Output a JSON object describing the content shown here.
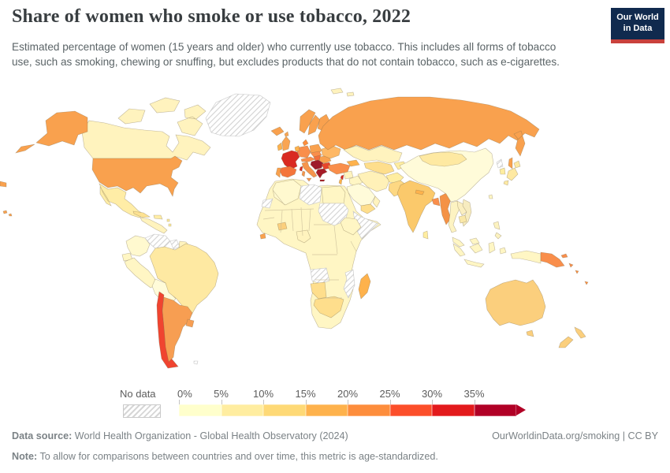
{
  "header": {
    "title": "Share of women who smoke or use tobacco, 2022",
    "subtitle": "Estimated percentage of women (15 years and older) who currently use tobacco. This includes all forms of tobacco use, such as smoking, chewing or snuffing, but excludes products that do not contain tobacco, such as e-cigarettes.",
    "logo": {
      "line1": "Our World",
      "line2": "in Data",
      "bg": "#102a4e",
      "stripe": "#c9413c"
    }
  },
  "legend": {
    "no_data_label": "No data"
  },
  "footer": {
    "source_label": "Data source:",
    "source_text": " World Health Organization - Global Health Observatory (2024)",
    "link": "OurWorldinData.org/smoking | CC BY",
    "note_label": "Note:",
    "note_text": " To allow for comparisons between countries and over time, this metric is age-standardized."
  },
  "chart_data": {
    "type": "choropleth",
    "title": "Share of women who smoke or use tobacco, 2022",
    "year": 2022,
    "unit": "% of women aged 15+ using tobacco",
    "projection": "world map",
    "no_data": {
      "label": "No data",
      "pattern": "diagonal-hatch"
    },
    "legend_bins": [
      {
        "label": "0%",
        "range": "0-5%",
        "color": "#FFFFCC"
      },
      {
        "label": "5%",
        "range": "5-10%",
        "color": "#FFEDA0"
      },
      {
        "label": "10%",
        "range": "10-15%",
        "color": "#FED976"
      },
      {
        "label": "15%",
        "range": "15-20%",
        "color": "#FEB24C"
      },
      {
        "label": "20%",
        "range": "20-25%",
        "color": "#FD8D3C"
      },
      {
        "label": "25%",
        "range": "25-30%",
        "color": "#FC4E2A"
      },
      {
        "label": "30%",
        "range": "30-35%",
        "color": "#E31A1C"
      },
      {
        "label": "35%",
        "range": "35%+",
        "color": "#B10026"
      }
    ],
    "regions": [
      {
        "id": "greenland",
        "label": "Greenland",
        "color": "no-data",
        "value_range": "No data"
      },
      {
        "id": "canada",
        "label": "Canada",
        "color": "#FFF3BE",
        "value_range": "5-10%"
      },
      {
        "id": "usa",
        "label": "United States",
        "color": "#F9A14E",
        "value_range": "15-20%"
      },
      {
        "id": "mexico",
        "label": "Mexico",
        "color": "#FFEDA6",
        "value_range": "5-10%"
      },
      {
        "id": "central_america",
        "label": "Central America",
        "color": "#FFF3BE",
        "value_range": "5-10%"
      },
      {
        "id": "cuba",
        "label": "Cuba",
        "color": "#FDE292",
        "value_range": "10-15%"
      },
      {
        "id": "hispaniola",
        "label": "Haiti / Dominican Republic",
        "color": "#FFEDA6",
        "value_range": "5-10%"
      },
      {
        "id": "caribbean",
        "label": "Lesser Antilles",
        "color": "#FFEDA0",
        "value_range": "5-10%"
      },
      {
        "id": "colombia",
        "label": "Colombia",
        "color": "#FFF9CF",
        "value_range": "0-5%"
      },
      {
        "id": "venezuela",
        "label": "Venezuela",
        "color": "no-data",
        "value_range": "No data"
      },
      {
        "id": "guyana",
        "label": "Guyana",
        "color": "no-data",
        "value_range": "No data"
      },
      {
        "id": "guianas",
        "label": "Suriname / French Guiana",
        "color": "#FFF3BE",
        "value_range": "5-10%"
      },
      {
        "id": "ecuador",
        "label": "Ecuador",
        "color": "#FFF6C4",
        "value_range": "0-5%"
      },
      {
        "id": "peru",
        "label": "Peru",
        "color": "#FFF6C4",
        "value_range": "0-5%"
      },
      {
        "id": "bolivia",
        "label": "Bolivia",
        "color": "#FFFBD9",
        "value_range": "0-5%"
      },
      {
        "id": "brazil",
        "label": "Brazil",
        "color": "#FEE9A2",
        "value_range": "5-10%"
      },
      {
        "id": "paraguay",
        "label": "Paraguay",
        "color": "#FFF3BE",
        "value_range": "5-10%"
      },
      {
        "id": "chile",
        "label": "Chile",
        "color": "#F04430",
        "value_range": "25-30%"
      },
      {
        "id": "argentina",
        "label": "Argentina",
        "color": "#F79E52",
        "value_range": "15-20%"
      },
      {
        "id": "uruguay",
        "label": "Uruguay",
        "color": "#F79E52",
        "value_range": "15-20%"
      },
      {
        "id": "falkland",
        "label": "Falkland Islands",
        "color": "no-data",
        "value_range": "No data"
      },
      {
        "id": "iceland",
        "label": "Iceland",
        "color": "#F9A14E",
        "value_range": "15-20%"
      },
      {
        "id": "uk",
        "label": "United Kingdom",
        "color": "#F9A552",
        "value_range": "15-20%"
      },
      {
        "id": "ireland",
        "label": "Ireland",
        "color": "#FEB24C",
        "value_range": "15-20%"
      },
      {
        "id": "norway",
        "label": "Norway",
        "color": "#F9A14E",
        "value_range": "20-25%"
      },
      {
        "id": "sweden",
        "label": "Sweden",
        "color": "#F9A14E",
        "value_range": "20-25%"
      },
      {
        "id": "finland",
        "label": "Finland",
        "color": "#F9A14E",
        "value_range": "15-20%"
      },
      {
        "id": "svalbard",
        "label": "Svalbard",
        "color": "#FFF3BE",
        "value_range": "5-10%"
      },
      {
        "id": "denmark",
        "label": "Denmark",
        "color": "#FD8D3C",
        "value_range": "20-25%"
      },
      {
        "id": "baltics",
        "label": "Baltic states",
        "color": "#F9A14E",
        "value_range": "15-20%"
      },
      {
        "id": "belarus",
        "label": "Belarus",
        "color": "#F9A14E",
        "value_range": "15-20%"
      },
      {
        "id": "poland",
        "label": "Poland",
        "color": "#F9A14E",
        "value_range": "15-20%"
      },
      {
        "id": "germany",
        "label": "Germany",
        "color": "#F98E4B",
        "value_range": "20-25%"
      },
      {
        "id": "benelux",
        "label": "Netherlands / Belgium",
        "color": "#FEB24C",
        "value_range": "15-20%"
      },
      {
        "id": "france",
        "label": "France",
        "color": "#D92A22",
        "value_range": "30-35%"
      },
      {
        "id": "spain",
        "label": "Spain",
        "color": "#F4753C",
        "value_range": "25-30%"
      },
      {
        "id": "portugal",
        "label": "Portugal",
        "color": "#F9A14E",
        "value_range": "15-20%"
      },
      {
        "id": "italy",
        "label": "Italy",
        "color": "#F6954C",
        "value_range": "20-25%"
      },
      {
        "id": "alps",
        "label": "Switzerland / Austria",
        "color": "#F98E4B",
        "value_range": "20-25%"
      },
      {
        "id": "czech_slovakia",
        "label": "Czechia / Slovakia",
        "color": "#F98E4B",
        "value_range": "20-25%"
      },
      {
        "id": "hungary",
        "label": "Hungary",
        "color": "#F4703C",
        "value_range": "25-30%"
      },
      {
        "id": "romania",
        "label": "Romania",
        "color": "#F9A14E",
        "value_range": "15-20%"
      },
      {
        "id": "ukraine",
        "label": "Ukraine",
        "color": "#FEB865",
        "value_range": "15-20%"
      },
      {
        "id": "balkans",
        "label": "Serbia / Bosnia / Croatia",
        "color": "#9E1B2B",
        "value_range": "35%+"
      },
      {
        "id": "bulgaria",
        "label": "Bulgaria",
        "color": "#E8452B",
        "value_range": "30-35%"
      },
      {
        "id": "greece",
        "label": "Greece",
        "color": "#A61C28",
        "value_range": "35%+"
      },
      {
        "id": "russia",
        "label": "Russia",
        "color": "#F9A14E",
        "value_range": "20-25%"
      },
      {
        "id": "kazakhstan",
        "label": "Kazakhstan",
        "color": "#FFF3BE",
        "value_range": "5-10%"
      },
      {
        "id": "uzbek_turkmen",
        "label": "Uzbekistan / Turkmenistan",
        "color": "#FEDE8C",
        "value_range": "10-15%"
      },
      {
        "id": "kyrgyz_tajik",
        "label": "Kyrgyzstan / Tajikistan",
        "color": "#FFEDA0",
        "value_range": "5-10%"
      },
      {
        "id": "caucasus",
        "label": "Caucasus",
        "color": "#FEB24C",
        "value_range": "15-20%"
      },
      {
        "id": "turkey",
        "label": "Turkey",
        "color": "#F98E4B",
        "value_range": "20-25%"
      },
      {
        "id": "syria",
        "label": "Syria",
        "color": "#FFF3BE",
        "value_range": "5-10%"
      },
      {
        "id": "lebanon",
        "label": "Lebanon",
        "color": "#D92A22",
        "value_range": "30-35%"
      },
      {
        "id": "israel",
        "label": "Israel / Jordan",
        "color": "#FEB24C",
        "value_range": "15-20%"
      },
      {
        "id": "iraq",
        "label": "Iraq",
        "color": "#FFF6C4",
        "value_range": "0-5%"
      },
      {
        "id": "saudi",
        "label": "Saudi Arabia",
        "color": "#FFFBD9",
        "value_range": "0-5%"
      },
      {
        "id": "yemen",
        "label": "Yemen",
        "color": "#FEDE8C",
        "value_range": "10-15%"
      },
      {
        "id": "oman",
        "label": "Oman",
        "color": "#FFF3BE",
        "value_range": "5-10%"
      },
      {
        "id": "iran",
        "label": "Iran",
        "color": "#FFF1B8",
        "value_range": "5-10%"
      },
      {
        "id": "afghanistan",
        "label": "Afghanistan",
        "color": "#FFEDA0",
        "value_range": "5-10%"
      },
      {
        "id": "pakistan",
        "label": "Pakistan",
        "color": "#FDD883",
        "value_range": "10-15%"
      },
      {
        "id": "india",
        "label": "India",
        "color": "#FBC96B",
        "value_range": "10-15%"
      },
      {
        "id": "nepal",
        "label": "Nepal",
        "color": "#FEB24C",
        "value_range": "15-20%"
      },
      {
        "id": "bangladesh",
        "label": "Bangladesh",
        "color": "#F98E4B",
        "value_range": "20-25%"
      },
      {
        "id": "myanmar",
        "label": "Myanmar",
        "color": "#F49246",
        "value_range": "20-25%"
      },
      {
        "id": "sri_lanka",
        "label": "Sri Lanka",
        "color": "#FFEDA0",
        "value_range": "5-10%"
      },
      {
        "id": "china",
        "label": "China",
        "color": "#FFFBD9",
        "value_range": "0-5%"
      },
      {
        "id": "taiwan",
        "label": "Taiwan",
        "color": "#FFF6C4",
        "value_range": "0-5%"
      },
      {
        "id": "mongolia",
        "label": "Mongolia",
        "color": "#FEE9A2",
        "value_range": "5-10%"
      },
      {
        "id": "north_korea",
        "label": "North Korea",
        "color": "no-data",
        "value_range": "No data"
      },
      {
        "id": "south_korea",
        "label": "South Korea",
        "color": "#FFEDA0",
        "value_range": "5-10%"
      },
      {
        "id": "japan",
        "label": "Japan",
        "color": "#FEE9A2",
        "value_range": "5-10%"
      },
      {
        "id": "thailand",
        "label": "Thailand",
        "color": "#FDF3C2",
        "value_range": "0-5%"
      },
      {
        "id": "laos",
        "label": "Laos",
        "color": "#FBEFC0",
        "value_range": "5-10%"
      },
      {
        "id": "vietnam",
        "label": "Vietnam",
        "color": "#F7ECC0",
        "value_range": "0-5%"
      },
      {
        "id": "cambodia",
        "label": "Cambodia",
        "color": "#FAE8A8",
        "value_range": "5-10%"
      },
      {
        "id": "malaysia",
        "label": "Malaysia",
        "color": "#FFF6C4",
        "value_range": "0-5%"
      },
      {
        "id": "indonesia",
        "label": "Indonesia",
        "color": "#FFF6C4",
        "value_range": "0-5%"
      },
      {
        "id": "philippines",
        "label": "Philippines",
        "color": "#FCF2C0",
        "value_range": "0-5%"
      },
      {
        "id": "png",
        "label": "Papua New Guinea",
        "color": "#F98E4B",
        "value_range": "20-25%"
      },
      {
        "id": "pacific_islands",
        "label": "Pacific islands",
        "color": "#FD8D3C",
        "value_range": "20-25%"
      },
      {
        "id": "australia",
        "label": "Australia",
        "color": "#FBCF7D",
        "value_range": "10-15%"
      },
      {
        "id": "new_zealand",
        "label": "New Zealand",
        "color": "#FBCF7D",
        "value_range": "10-15%"
      },
      {
        "id": "africa_mainland",
        "label": "Africa (mostly 0-5%)",
        "color": "#FFF6C4",
        "value_range": "0-5%"
      },
      {
        "id": "algeria",
        "label": "Algeria",
        "color": "#FFF9CF",
        "value_range": "0-5%"
      },
      {
        "id": "western_sahara",
        "label": "Western Sahara",
        "color": "no-data",
        "value_range": "No data"
      },
      {
        "id": "libya",
        "label": "Libya",
        "color": "no-data",
        "value_range": "No data"
      },
      {
        "id": "egypt",
        "label": "Egypt",
        "color": "#FFF6C4",
        "value_range": "0-5%"
      },
      {
        "id": "sudan",
        "label": "Sudan",
        "color": "no-data",
        "value_range": "No data"
      },
      {
        "id": "somalia",
        "label": "Somalia",
        "color": "no-data",
        "value_range": "No data"
      },
      {
        "id": "ethiopia",
        "label": "Ethiopia",
        "color": "#FFF6C4",
        "value_range": "0-5%"
      },
      {
        "id": "burkina_faso",
        "label": "Burkina Faso",
        "color": "#FBCF7D",
        "value_range": "10-15%"
      },
      {
        "id": "sierra_leone",
        "label": "Sierra Leone",
        "color": "#F9A14E",
        "value_range": "15-20%"
      },
      {
        "id": "nigeria",
        "label": "Nigeria",
        "color": "#FFF3BE",
        "value_range": "5-10%"
      },
      {
        "id": "angola",
        "label": "Angola",
        "color": "no-data",
        "value_range": "No data"
      },
      {
        "id": "mozambique",
        "label": "Mozambique",
        "color": "no-data",
        "value_range": "No data"
      },
      {
        "id": "namibia",
        "label": "Namibia",
        "color": "#FEDE8C",
        "value_range": "10-15%"
      },
      {
        "id": "south_africa",
        "label": "South Africa",
        "color": "#FEDE8C",
        "value_range": "10-15%"
      },
      {
        "id": "madagascar",
        "label": "Madagascar",
        "color": "#FEB24C",
        "value_range": "15-20%"
      }
    ]
  }
}
